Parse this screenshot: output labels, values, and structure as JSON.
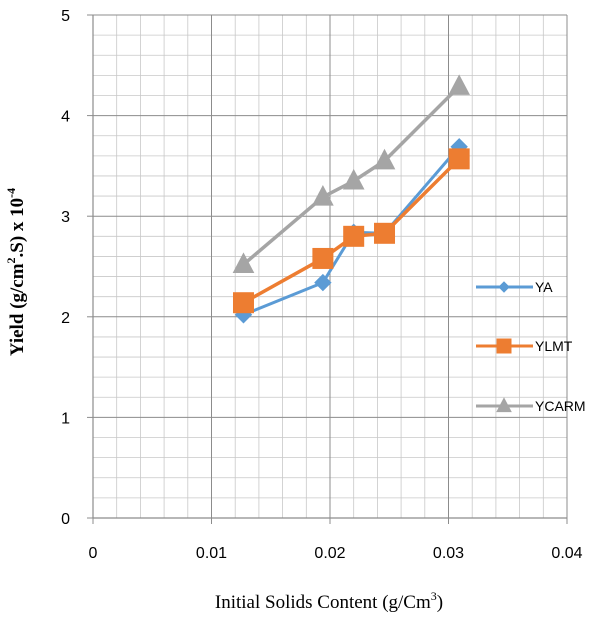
{
  "chart_data": {
    "type": "line",
    "title": "",
    "xlabel_main": "Initial Solids Content (g/Cm",
    "xlabel_sup": "3",
    "xlabel_end": ")",
    "ylabel_part1": "Yield (g/cm",
    "ylabel_sup1": "2",
    "ylabel_part2": ".S) x 10",
    "ylabel_sup2": "-4",
    "xlim": [
      0,
      0.04
    ],
    "ylim": [
      0,
      5
    ],
    "x_ticks": [
      "0",
      "0.01",
      "0.02",
      "0.03",
      "0.04"
    ],
    "y_ticks": [
      "0",
      "1",
      "2",
      "3",
      "4",
      "5"
    ],
    "grid": true,
    "legend_position": "right",
    "series": [
      {
        "name": "YA",
        "color": "#5B9BD5",
        "marker": "diamond",
        "x": [
          0.0127,
          0.0194,
          0.022,
          0.0246,
          0.0309
        ],
        "y": [
          2.02,
          2.34,
          2.84,
          2.83,
          3.69
        ]
      },
      {
        "name": "YLMT",
        "color": "#ED7D31",
        "marker": "square",
        "x": [
          0.0127,
          0.0194,
          0.022,
          0.0246,
          0.0309
        ],
        "y": [
          2.14,
          2.58,
          2.8,
          2.83,
          3.57
        ]
      },
      {
        "name": "YCARM",
        "color": "#A5A5A5",
        "marker": "triangle",
        "x": [
          0.0127,
          0.0194,
          0.022,
          0.0246,
          0.0309
        ],
        "y": [
          2.52,
          3.19,
          3.35,
          3.55,
          4.29
        ]
      }
    ]
  }
}
